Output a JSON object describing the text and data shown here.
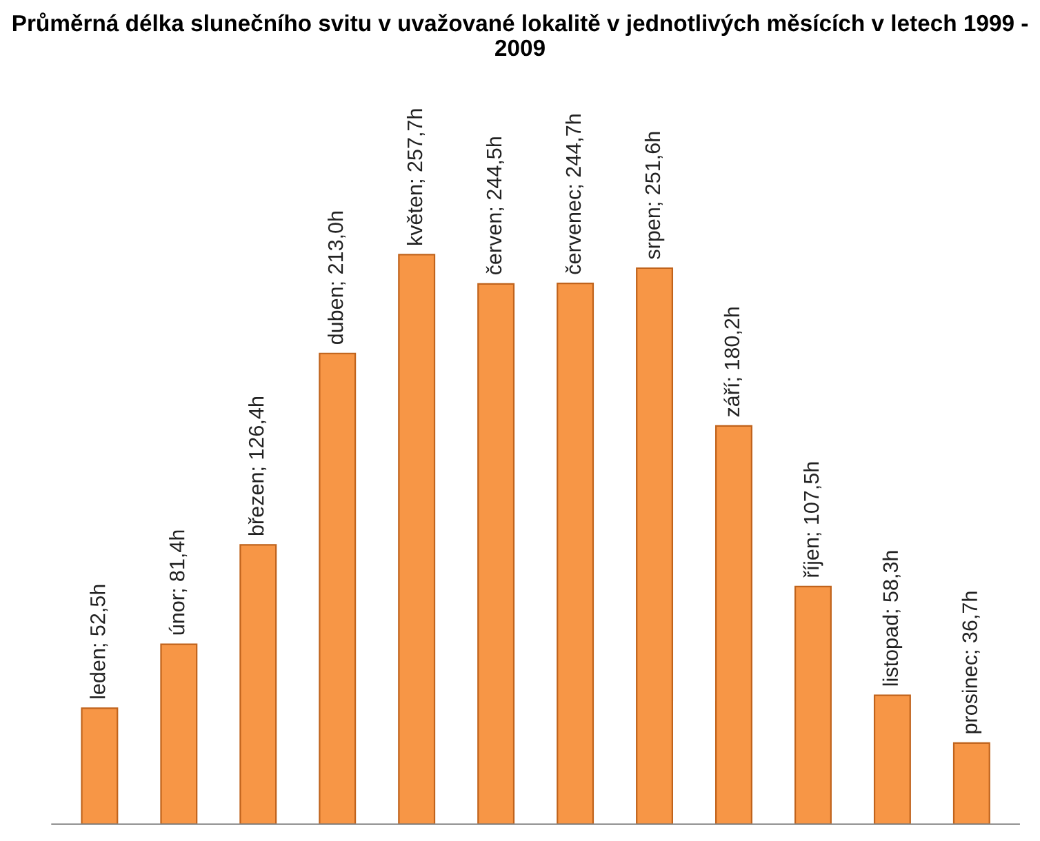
{
  "chart_data": {
    "type": "bar",
    "title": "Průměrná délka slunečního svitu v uvažované lokalitě v jednotlivých měsících v letech 1999 - 2009",
    "categories": [
      null,
      null,
      null,
      null,
      null,
      null,
      null,
      null,
      null,
      null,
      null,
      null
    ],
    "values": [
      52.5,
      81.4,
      126.4,
      213.0,
      257.7,
      244.5,
      244.7,
      251.6,
      180.2,
      107.5,
      58.3,
      36.7
    ],
    "value_labels": [
      "leden; 52,5h",
      "únor; 81,4h",
      "březen; 126,4h",
      "duben; 213,0h",
      "květen; 257,7h",
      "červen; 244,5h",
      "červenec; 244,7h",
      "srpen; 251,6h",
      "září; 180,2h",
      "říjen; 107,5h",
      "listopad; 58,3h",
      "prosinec; 36,7h"
    ],
    "color": "#f79646",
    "grid": false,
    "legend": false
  }
}
